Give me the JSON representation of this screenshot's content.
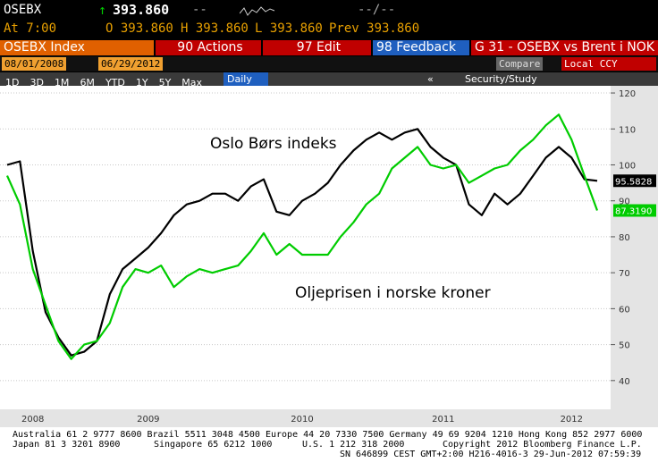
{
  "header": {
    "ticker": "OSEBX",
    "price": "393.860",
    "change": "--",
    "range": "--/--",
    "time": "At 7:00",
    "open": "O 393.860",
    "high": "H 393.860",
    "low": "L 393.860",
    "prev": "Prev 393.860"
  },
  "toolbar": {
    "security": "OSEBX Index",
    "actions": "90 Actions",
    "edit": "97 Edit",
    "feedback": "98 Feedback",
    "title": "G 31 - OSEBX vs Brent i NOK"
  },
  "dates": {
    "start": "08/01/2008",
    "end": "06/29/2012",
    "compare": "Compare",
    "currency": "Local CCY"
  },
  "periods": [
    "1D",
    "3D",
    "1M",
    "6M",
    "YTD",
    "1Y",
    "5Y",
    "Max"
  ],
  "frequency": "Daily",
  "study": "Security/Study",
  "footer": {
    "line1": "Australia 61 2 9777 8600 Brazil 5511 3048 4500 Europe 44 20 7330 7500 Germany 49 69 9204 1210 Hong Kong 852 2977 6000",
    "japan": "Japan 81 3 3201 8900",
    "singapore": "Singapore 65 6212 1000",
    "us": "U.S. 1 212 318 2000",
    "copyright": "Copyright 2012 Bloomberg Finance L.P.",
    "line3": "SN 646899 CEST GMT+2:00 H216-4016-3 29-Jun-2012 07:59:39"
  },
  "chart_data": {
    "type": "line",
    "annotations": [
      "Oslo Børs indeks",
      "Oljeprisen i norske kroner"
    ],
    "categories": [
      null,
      null,
      "2008",
      null,
      null,
      null,
      null,
      null,
      null,
      null,
      null,
      "2009",
      null,
      null,
      null,
      null,
      null,
      null,
      null,
      null,
      null,
      null,
      null,
      "2010",
      null,
      null,
      null,
      null,
      null,
      null,
      null,
      null,
      null,
      null,
      "2011",
      null,
      null,
      null,
      null,
      null,
      null,
      null,
      null,
      null,
      "2012",
      null,
      null
    ],
    "series": [
      {
        "name": "OSEBX",
        "color": "#000000",
        "values": [
          100,
          101,
          76,
          59,
          52,
          47,
          48,
          51,
          64,
          71,
          74,
          77,
          81,
          86,
          89,
          90,
          92,
          92,
          90,
          94,
          96,
          87,
          86,
          90,
          92,
          95,
          100,
          104,
          107,
          109,
          107,
          109,
          110,
          105,
          102,
          100,
          89,
          86,
          92,
          89,
          92,
          97,
          102,
          105,
          102,
          96,
          95.5828
        ],
        "value_labels": [
          null,
          null,
          null,
          null,
          null,
          null,
          null,
          null,
          null,
          null,
          null,
          null,
          null,
          null,
          null,
          null,
          null,
          null,
          null,
          null,
          null,
          null,
          null,
          null,
          null,
          null,
          null,
          null,
          null,
          null,
          null,
          null,
          null,
          null,
          null,
          null,
          null,
          null,
          null,
          null,
          null,
          null,
          null,
          null,
          null,
          null,
          "95.5828"
        ]
      },
      {
        "name": "Brent NOK",
        "color": "#00cc00",
        "values": [
          97,
          89,
          71,
          61,
          51,
          46,
          50,
          51,
          56,
          66,
          71,
          70,
          72,
          66,
          69,
          71,
          70,
          71,
          72,
          76,
          81,
          75,
          78,
          75,
          75,
          75,
          80,
          84,
          89,
          92,
          99,
          102,
          105,
          100,
          99,
          100,
          95,
          97,
          99,
          100,
          104,
          107,
          111,
          114,
          107,
          97,
          87.319
        ],
        "value_labels": [
          null,
          null,
          null,
          null,
          null,
          null,
          null,
          null,
          null,
          null,
          null,
          null,
          null,
          null,
          null,
          null,
          null,
          null,
          null,
          null,
          null,
          null,
          null,
          null,
          null,
          null,
          null,
          null,
          null,
          null,
          null,
          null,
          null,
          null,
          null,
          null,
          null,
          null,
          null,
          null,
          null,
          null,
          null,
          null,
          null,
          null,
          "87.3190"
        ]
      }
    ],
    "ylim": [
      32,
      122
    ],
    "yticks": [
      40,
      50,
      60,
      70,
      80,
      90,
      100,
      110,
      120
    ],
    "grid": true
  }
}
